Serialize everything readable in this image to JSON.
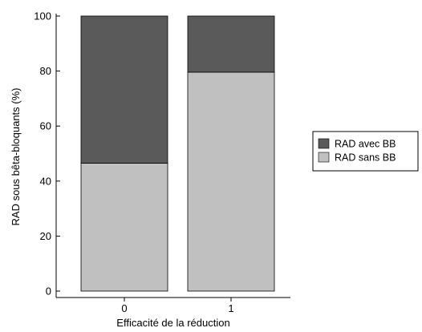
{
  "chart_data": {
    "type": "bar",
    "stacked": true,
    "categories": [
      "0",
      "1"
    ],
    "series": [
      {
        "name": "RAD sans BB",
        "values": [
          46.5,
          79.6
        ],
        "color": "#c0c0c0"
      },
      {
        "name": "RAD avec BB",
        "values": [
          53.5,
          20.4
        ],
        "color": "#5a5a5a"
      }
    ],
    "xlabel": "Efficacité de la réduction",
    "ylabel": "RAD sous bêta-bloquants (%)",
    "ylim": [
      0,
      100
    ],
    "yticks": [
      "0",
      "20",
      "40",
      "60",
      "80",
      "100"
    ],
    "grid": false,
    "legend": {
      "placement": "right",
      "entries": [
        {
          "label": "RAD avec BB",
          "color": "#5a5a5a"
        },
        {
          "label": "RAD sans BB",
          "color": "#c0c0c0"
        }
      ]
    }
  }
}
